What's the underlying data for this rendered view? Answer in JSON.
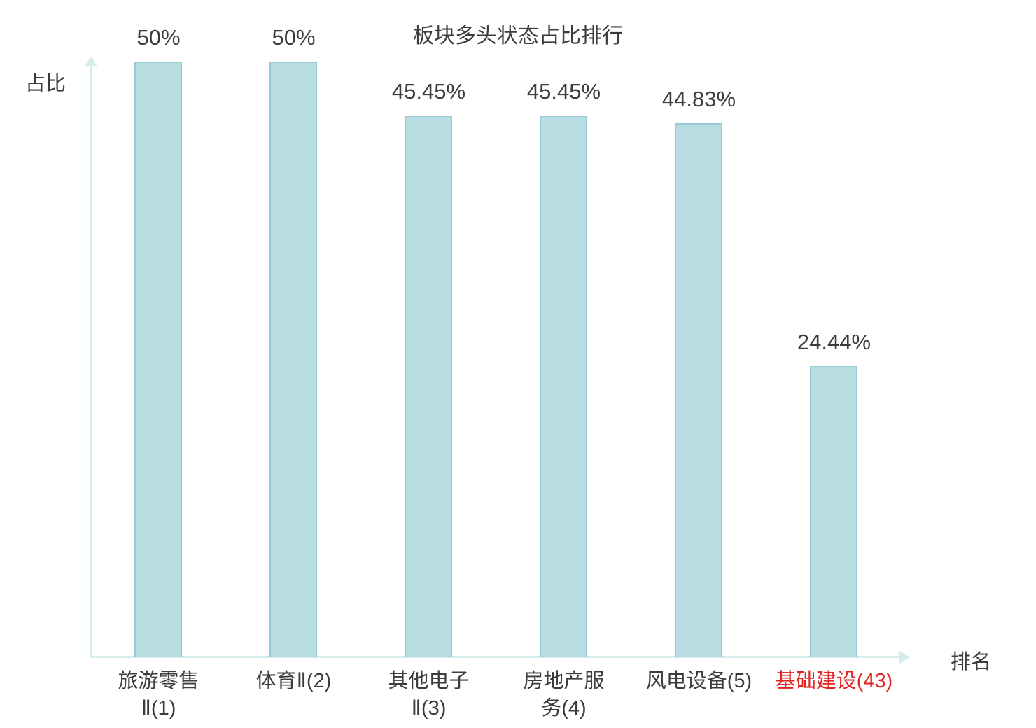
{
  "colors": {
    "bar_fill": "#b7dce2",
    "bar_border": "#96c9d1",
    "axis": "#d5ecec",
    "text": "#3c3c3c",
    "highlight": "#e42320"
  },
  "chart_data": {
    "type": "bar",
    "title": "板块多头状态占比排行",
    "xlabel": "排名",
    "ylabel": "占比",
    "ylim": [
      0,
      50
    ],
    "grid": false,
    "legend": "none",
    "categories": [
      "旅游零售Ⅱ(1)",
      "体育Ⅱ(2)",
      "其他电子Ⅱ(3)",
      "房地产服务(4)",
      "风电设备(5)",
      "基础建设(43)"
    ],
    "values": [
      50,
      50,
      45.45,
      45.45,
      44.83,
      24.44
    ],
    "bars": [
      {
        "category": "旅游零售Ⅱ(1)",
        "label_lines": [
          "旅游零售",
          "Ⅱ(1)"
        ],
        "value": 50,
        "value_label": "50%",
        "highlight": false
      },
      {
        "category": "体育Ⅱ(2)",
        "label_lines": [
          "体育Ⅱ(2)"
        ],
        "value": 50,
        "value_label": "50%",
        "highlight": false
      },
      {
        "category": "其他电子Ⅱ(3)",
        "label_lines": [
          "其他电子",
          "Ⅱ(3)"
        ],
        "value": 45.45,
        "value_label": "45.45%",
        "highlight": false
      },
      {
        "category": "房地产服务(4)",
        "label_lines": [
          "房地产服",
          "务(4)"
        ],
        "value": 45.45,
        "value_label": "45.45%",
        "highlight": false
      },
      {
        "category": "风电设备(5)",
        "label_lines": [
          "风电设备(5)"
        ],
        "value": 44.83,
        "value_label": "44.83%",
        "highlight": false
      },
      {
        "category": "基础建设(43)",
        "label_lines": [
          "基础建设(43)"
        ],
        "value": 24.44,
        "value_label": "24.44%",
        "highlight": true
      }
    ]
  }
}
